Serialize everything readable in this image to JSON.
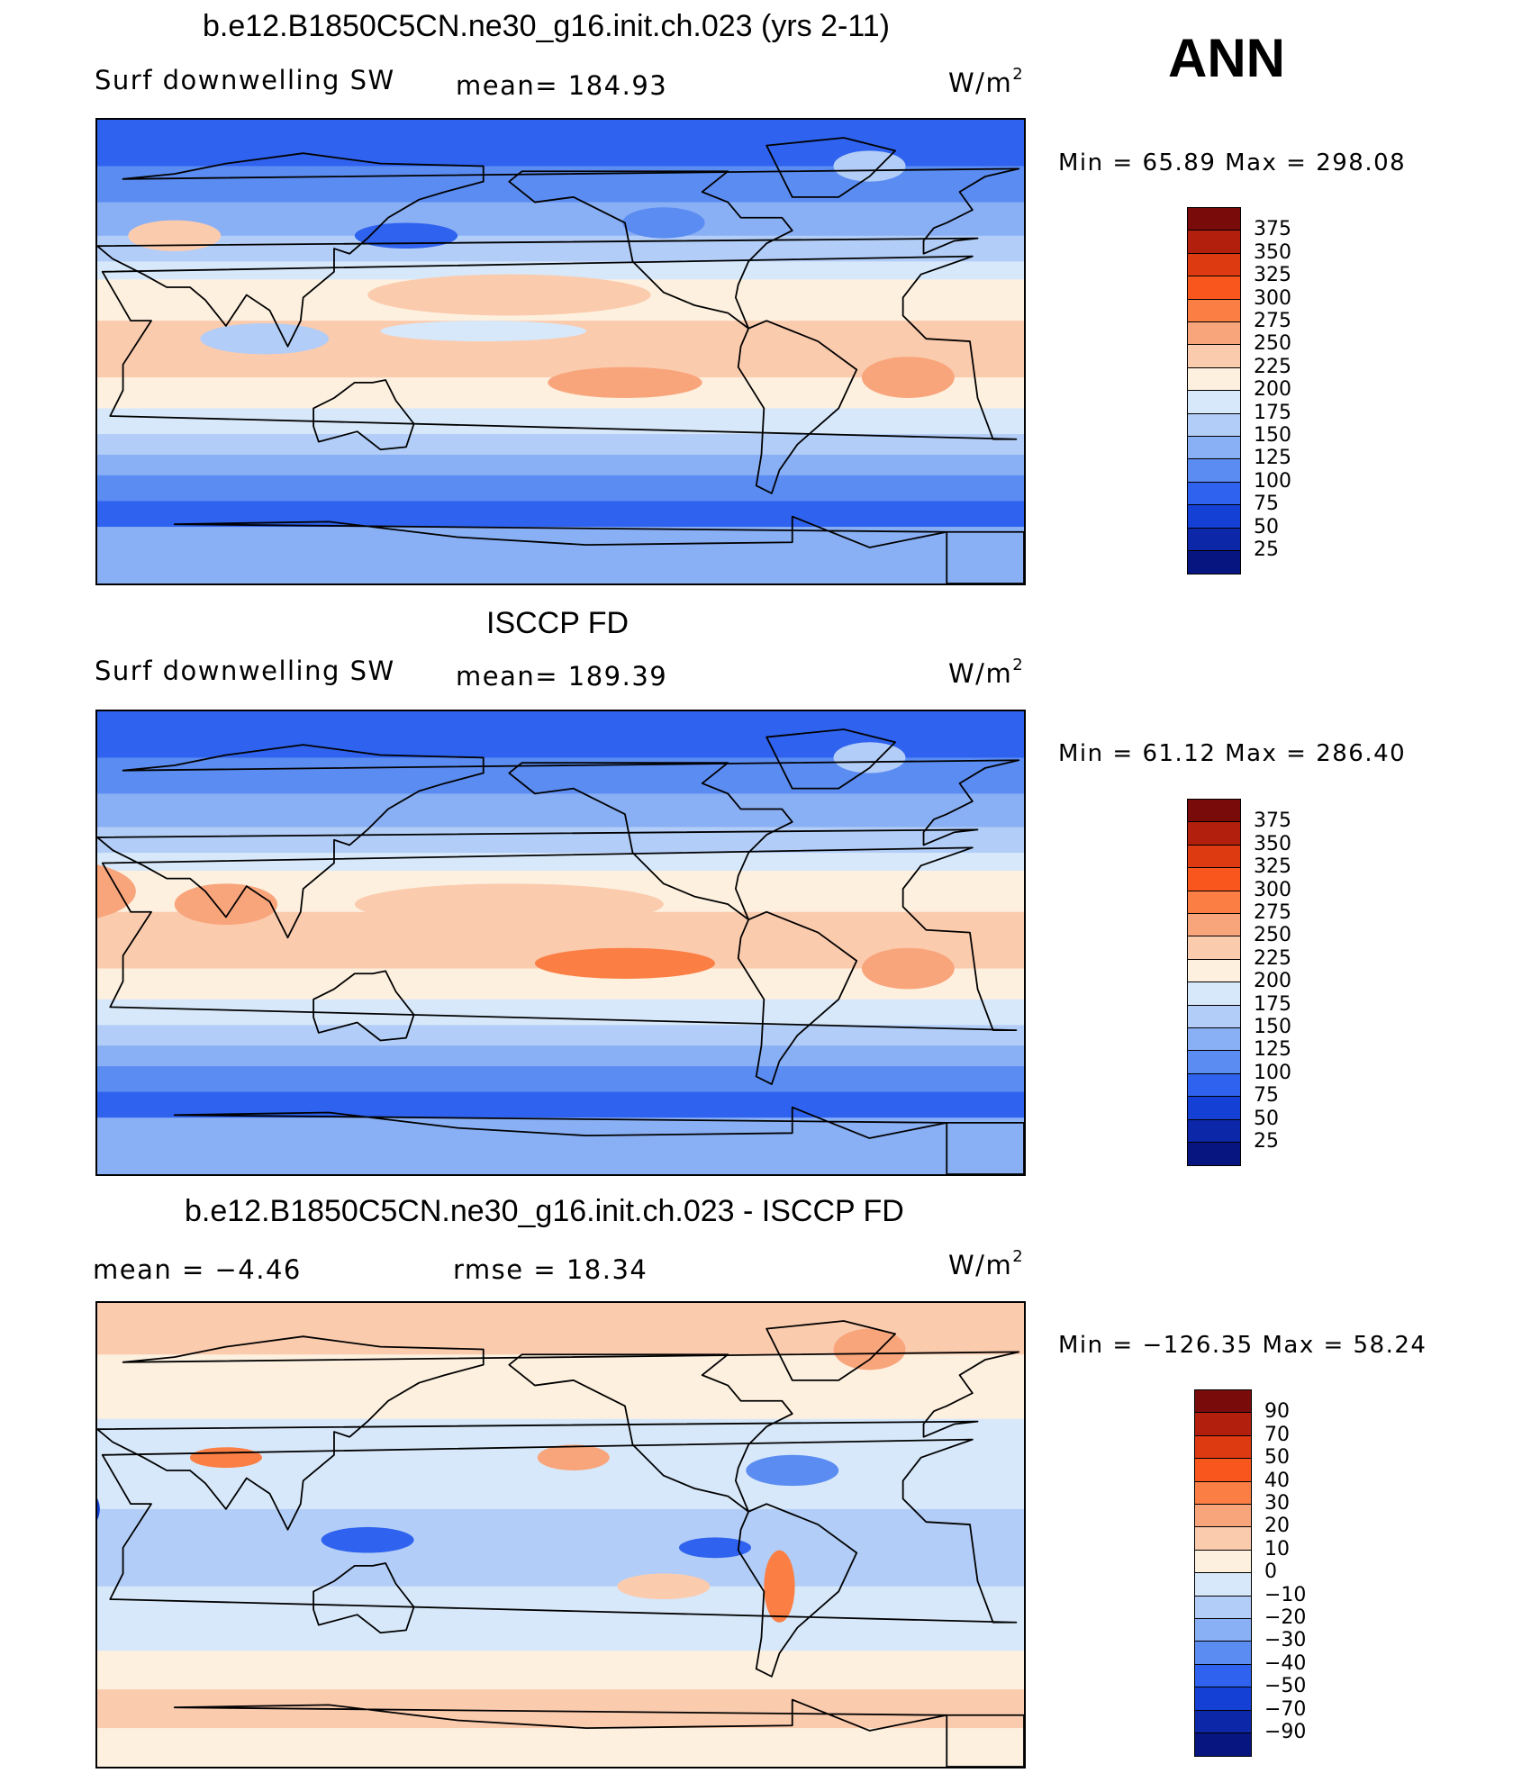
{
  "season": "ANN",
  "panels": [
    {
      "id": "model",
      "title": "b.e12.B1850C5CN.ne30_g16.init.ch.023 (yrs 2-11)",
      "left_text": "Surf  downwelling  SW",
      "center_text": "mean=  184.93",
      "units": "W/m",
      "units_sup": "2",
      "minmax": "Min  =   65.89  Max  =  298.08",
      "colorbar_labels": [
        "375",
        "350",
        "325",
        "300",
        "275",
        "250",
        "225",
        "200",
        "175",
        "150",
        "125",
        "100",
        "75",
        "50",
        "25"
      ]
    },
    {
      "id": "obs",
      "title": "ISCCP FD",
      "left_text": "Surf  downwelling  SW",
      "center_text": "mean=  189.39",
      "units": "W/m",
      "units_sup": "2",
      "minmax": "Min  =   61.12  Max  =  286.40",
      "colorbar_labels": [
        "375",
        "350",
        "325",
        "300",
        "275",
        "250",
        "225",
        "200",
        "175",
        "150",
        "125",
        "100",
        "75",
        "50",
        "25"
      ]
    },
    {
      "id": "diff",
      "title": "b.e12.B1850C5CN.ne30_g16.init.ch.023 - ISCCP FD",
      "left_text": "mean  =    −4.46",
      "center_text": "rmse  =    18.34",
      "units": "W/m",
      "units_sup": "2",
      "minmax": "Min  =  −126.35  Max  =    58.24",
      "colorbar_labels": [
        "90",
        "70",
        "50",
        "40",
        "30",
        "20",
        "10",
        "0",
        "−10",
        "−20",
        "−30",
        "−40",
        "−50",
        "−70",
        "−90"
      ]
    }
  ],
  "colors": {
    "full_scale": [
      "#7a0b0b",
      "#b2200d",
      "#de3a12",
      "#f8561c",
      "#fb7f45",
      "#f9a57c",
      "#fbcbae",
      "#fdf0df",
      "#d7e8fa",
      "#b2cdf7",
      "#89aff4",
      "#5b8cf2",
      "#2f62ee",
      "#1440d6",
      "#0c27a8",
      "#061580"
    ],
    "diff_scale": [
      "#7a0b0b",
      "#b2200d",
      "#de3a12",
      "#f8561c",
      "#fb7f45",
      "#f9a57c",
      "#fbcbae",
      "#fdf0df",
      "#d7e8fa",
      "#b2cdf7",
      "#89aff4",
      "#5b8cf2",
      "#2f62ee",
      "#1440d6",
      "#0c27a8",
      "#061580"
    ],
    "coast": "#000000"
  }
}
